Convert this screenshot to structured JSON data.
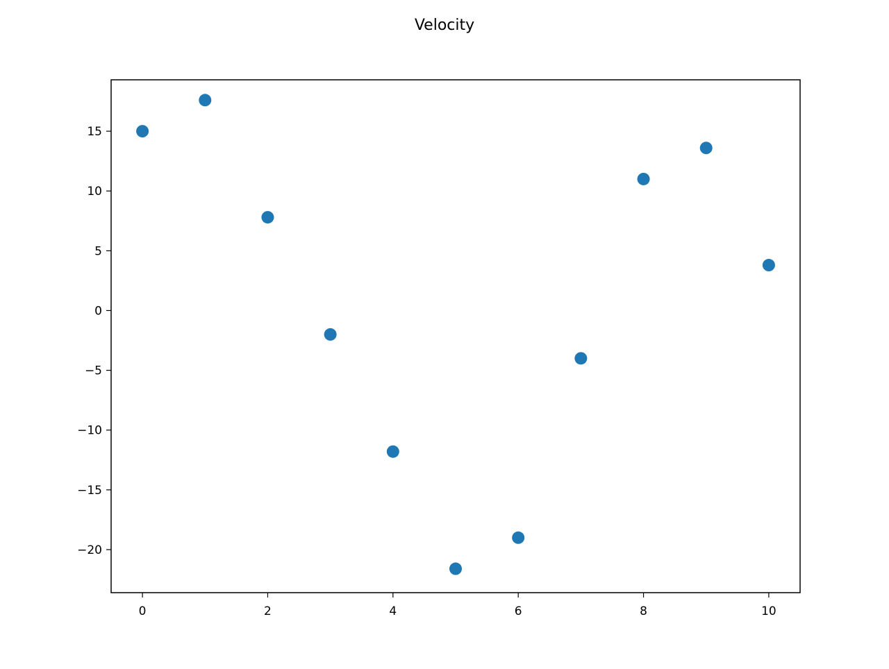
{
  "chart_data": {
    "type": "scatter",
    "title": "Velocity",
    "xlabel": "",
    "ylabel": "",
    "x": [
      0,
      1,
      2,
      3,
      4,
      5,
      6,
      7,
      8,
      9,
      10
    ],
    "y": [
      15.0,
      17.6,
      7.8,
      -2.0,
      -11.8,
      -21.6,
      -19.0,
      -4.0,
      11.0,
      13.6,
      3.8
    ],
    "xlim": [
      -0.5,
      10.5
    ],
    "ylim": [
      -23.6,
      19.3
    ],
    "xticks": [
      0,
      2,
      4,
      6,
      8,
      10
    ],
    "yticks": [
      15,
      10,
      5,
      0,
      -5,
      -10,
      -15,
      -20
    ],
    "xtick_labels": [
      "0",
      "2",
      "4",
      "6",
      "8",
      "10"
    ],
    "ytick_labels": [
      "15",
      "10",
      "5",
      "0",
      "−5",
      "−10",
      "−15",
      "−20"
    ],
    "grid": false,
    "marker_color": "#1f77b4"
  }
}
